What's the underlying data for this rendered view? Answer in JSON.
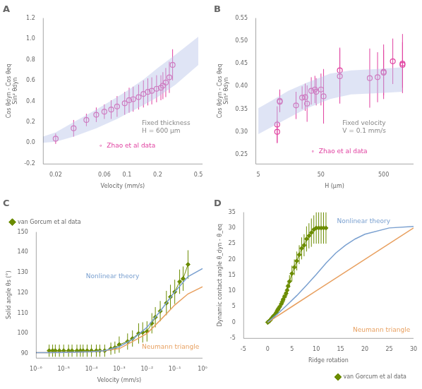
{
  "chart_data": [
    {
      "type": "scatter",
      "title": "A",
      "xlabel": "Velocity (mm/s)",
      "ylabel": [
        "Cos θdyn - Cos θeq",
        "Sin² θdyn"
      ],
      "log": "x",
      "grid": false,
      "xlim": [
        0.015,
        0.55
      ],
      "xticks": [
        0.02,
        0.06,
        0.1,
        0.2,
        0.5
      ],
      "ylim": [
        -0.2,
        1.2
      ],
      "yticks": [
        -0.2,
        {
          "value": 0,
          "label": "0.0"
        },
        0.2,
        0.4,
        0.6,
        0.8,
        {
          "value": 1,
          "label": "1.0"
        },
        1.2
      ],
      "series": [
        {
          "type": "band",
          "color": "#b8c4e8",
          "x": [
            0.015,
            0.02,
            0.03,
            0.05,
            0.08,
            0.1,
            0.15,
            0.2,
            0.3,
            0.5
          ],
          "low": [
            0.0,
            0.01,
            0.06,
            0.14,
            0.23,
            0.28,
            0.37,
            0.44,
            0.56,
            0.75
          ],
          "high": [
            0.06,
            0.1,
            0.2,
            0.32,
            0.44,
            0.5,
            0.62,
            0.72,
            0.85,
            1.02
          ]
        },
        {
          "type": "scatter",
          "color": "#e040a0",
          "marker": "open_circle",
          "x": [
            0.02,
            0.03,
            0.04,
            0.05,
            0.06,
            0.07,
            0.08,
            0.095,
            0.105,
            0.115,
            0.13,
            0.145,
            0.16,
            0.175,
            0.195,
            0.215,
            0.225,
            0.24,
            0.26,
            0.28
          ],
          "values": [
            0.04,
            0.14,
            0.22,
            0.27,
            0.3,
            0.32,
            0.35,
            0.38,
            0.41,
            0.42,
            0.44,
            0.47,
            0.49,
            0.5,
            0.52,
            0.53,
            0.55,
            0.58,
            0.63,
            0.75
          ],
          "yerr": [
            0.05,
            0.08,
            0.06,
            0.07,
            0.07,
            0.09,
            0.1,
            0.11,
            0.12,
            0.12,
            0.12,
            0.13,
            0.13,
            0.13,
            0.13,
            0.12,
            0.13,
            0.14,
            0.15,
            0.15
          ]
        }
      ],
      "annotations": [
        {
          "text": [
            "Fixed thickness",
            "H = 600 μm"
          ],
          "color": "#888888"
        },
        {
          "text": "∘  Zhao et al data",
          "color": "#e040a0"
        }
      ]
    },
    {
      "type": "scatter",
      "title": "B",
      "xlabel": "H (μm)",
      "ylabel": [
        "Cos θdyn - Cos θeq",
        "Sin² θdyn"
      ],
      "log": "x",
      "grid": false,
      "xlim": [
        4.5,
        1500
      ],
      "xticks": [
        5,
        50,
        500
      ],
      "ylim": [
        0.23,
        0.55
      ],
      "yticks": [
        0.25,
        {
          "value": 0.3,
          "label": "0.30"
        },
        0.35,
        {
          "value": 0.4,
          "label": "0.40"
        },
        0.45,
        {
          "value": 0.5,
          "label": "0.50"
        },
        0.55
      ],
      "series": [
        {
          "type": "band",
          "color": "#b8c4e8",
          "x": [
            5,
            8,
            15,
            30,
            70,
            150,
            400,
            1000
          ],
          "low": [
            0.295,
            0.31,
            0.33,
            0.352,
            0.372,
            0.382,
            0.385,
            0.388
          ],
          "high": [
            0.352,
            0.368,
            0.39,
            0.408,
            0.428,
            0.435,
            0.438,
            0.442
          ]
        },
        {
          "type": "scatter",
          "color": "#e040a0",
          "marker": "open_circle",
          "x": [
            10,
            10,
            11,
            11,
            20,
            25,
            28,
            30,
            35,
            40,
            42,
            50,
            55,
            100,
            100,
            300,
            400,
            500,
            500,
            700,
            1000,
            1000
          ],
          "values": [
            0.3,
            0.316,
            0.366,
            0.368,
            0.358,
            0.375,
            0.376,
            0.362,
            0.39,
            0.393,
            0.388,
            0.393,
            0.378,
            0.435,
            0.422,
            0.418,
            0.42,
            0.432,
            0.43,
            0.455,
            0.447,
            0.45
          ],
          "yerr": [
            0.025,
            0.04,
            0.02,
            0.025,
            0.03,
            0.025,
            0.03,
            0.04,
            0.03,
            0.03,
            0.03,
            0.035,
            0.06,
            0.05,
            0.06,
            0.065,
            0.055,
            0.06,
            0.05,
            0.05,
            0.05,
            0.065
          ]
        }
      ],
      "annotations": [
        {
          "text": [
            "Fixed velocity",
            "V = 0.1 mm/s"
          ],
          "color": "#888888"
        },
        {
          "text": "∘  Zhao et al data",
          "color": "#e040a0"
        }
      ]
    },
    {
      "type": "line",
      "title": "C",
      "xlabel": "Velocity (mm/s)",
      "ylabel": "Solid angle θs (°)",
      "log": "x",
      "grid": false,
      "legend": "upper left",
      "xlim": [
        1e-06,
        1.0
      ],
      "xticks": [
        {
          "value": 1e-06,
          "label": "10⁻⁶"
        },
        {
          "value": 1e-05,
          "label": "10⁻⁵"
        },
        {
          "value": 0.0001,
          "label": "10⁻⁴"
        },
        {
          "value": 0.001,
          "label": "10⁻³"
        },
        {
          "value": 0.01,
          "label": "10⁻²"
        },
        {
          "value": 0.1,
          "label": "10⁻¹"
        },
        {
          "value": 1,
          "label": "10⁰"
        }
      ],
      "ylim": [
        88,
        150
      ],
      "yticks": [
        90,
        100,
        110,
        120,
        130,
        140,
        150
      ],
      "series": [
        {
          "type": "line",
          "color": "#7aa0d0",
          "line_style": "solid",
          "x": [
            1e-06,
            3e-06,
            1e-05,
            3e-05,
            0.0001,
            0.0003,
            0.001,
            0.003,
            0.01,
            0.03,
            0.1,
            0.3,
            1.0
          ],
          "values": [
            90.5,
            90.5,
            90.6,
            90.8,
            91.0,
            91.5,
            93.5,
            97.0,
            103.0,
            111.0,
            120.5,
            128.0,
            132.0
          ]
        },
        {
          "type": "line",
          "color": "#e8a060",
          "line_style": "solid",
          "x": [
            1e-06,
            3e-06,
            1e-05,
            3e-05,
            0.0001,
            0.0003,
            0.001,
            0.003,
            0.01,
            0.03,
            0.1,
            0.3,
            1.0
          ],
          "values": [
            90.5,
            90.5,
            90.6,
            90.8,
            91.0,
            91.5,
            92.5,
            96.0,
            100.0,
            106.5,
            114.0,
            119.5,
            123.0
          ]
        },
        {
          "type": "line",
          "name": "van Gorcum et al data",
          "color": "#6b8c00",
          "marker": "diamond",
          "line_style": "solid",
          "x": [
            3e-06,
            4e-06,
            5e-06,
            7e-06,
            1e-05,
            1.5e-05,
            2e-05,
            3e-05,
            4e-05,
            5e-05,
            7e-05,
            0.0001,
            0.00015,
            0.0002,
            0.0003,
            0.0005,
            0.0007,
            0.001,
            0.002,
            0.003,
            0.005,
            0.007,
            0.01,
            0.015,
            0.02,
            0.03,
            0.05,
            0.07,
            0.1,
            0.15,
            0.2,
            0.3
          ],
          "values": [
            91.5,
            91.5,
            91.5,
            91.5,
            91.5,
            91.5,
            91.5,
            91.5,
            91.5,
            91.5,
            91.5,
            91.5,
            91.5,
            91.5,
            91.5,
            92.5,
            93.0,
            94.5,
            96.0,
            97.5,
            100.0,
            100.5,
            101.0,
            105.0,
            108.0,
            111.0,
            115.0,
            118.0,
            120.5,
            125.5,
            127.0,
            134.0
          ],
          "yerr_low": [
            3,
            3,
            3,
            3,
            3,
            3,
            3,
            3,
            3,
            3,
            3,
            3,
            3,
            3,
            3,
            3,
            3,
            4,
            4,
            4,
            5,
            5,
            5,
            5,
            5,
            5,
            6,
            6,
            6,
            6,
            6,
            7
          ],
          "yerr_high": [
            3,
            3,
            3,
            3,
            3,
            3,
            3,
            3,
            3,
            3,
            3,
            3,
            3,
            3,
            3,
            3,
            3,
            4,
            4,
            4,
            5,
            5,
            5,
            5,
            5,
            5,
            6,
            6,
            6,
            6,
            6,
            7
          ]
        }
      ],
      "annotations": [
        {
          "text": "Nonlinear theory",
          "color": "#7aa0d0"
        },
        {
          "text": "Neumann triangle",
          "color": "#e8a060"
        }
      ]
    },
    {
      "type": "line",
      "title": "D",
      "xlabel": "Ridge rotation",
      "ylabel": "Dynamic contact angle θ_dyn - θ_eq",
      "grid": false,
      "legend": "lower right",
      "xlim": [
        -5,
        30
      ],
      "xticks": [
        -5,
        0,
        5,
        10,
        15,
        20,
        25,
        30
      ],
      "ylim": [
        -5,
        35
      ],
      "yticks": [
        -5,
        0,
        5,
        10,
        15,
        20,
        25,
        30,
        35
      ],
      "series": [
        {
          "type": "line",
          "color": "#7aa0d0",
          "line_style": "solid",
          "x": [
            0,
            2,
            4,
            6,
            8,
            10,
            12,
            14,
            16,
            18,
            20,
            25,
            30
          ],
          "values": [
            0,
            2.6,
            5.5,
            8.5,
            11.8,
            15.2,
            18.8,
            22.0,
            24.5,
            26.5,
            28.0,
            30.0,
            30.5
          ]
        },
        {
          "type": "line",
          "color": "#e8a060",
          "line_style": "solid",
          "x": [
            0,
            5,
            10,
            15,
            20,
            25,
            30
          ],
          "values": [
            0,
            5.0,
            10.0,
            15.0,
            20.0,
            25.0,
            30.0
          ]
        },
        {
          "type": "line",
          "name": "van Gorcum et al data",
          "color": "#6b8c00",
          "marker": "diamond",
          "line_style": "solid",
          "x": [
            0.0,
            0.2,
            0.4,
            0.6,
            0.8,
            1.0,
            1.2,
            1.5,
            1.8,
            2.0,
            2.2,
            2.5,
            2.8,
            3.0,
            3.2,
            3.5,
            3.8,
            4.0,
            4.2,
            4.5,
            5.0,
            5.5,
            6.0,
            6.5,
            7.0,
            7.5,
            8.0,
            8.5,
            9.0,
            9.5,
            10.0,
            10.5,
            11.0,
            11.5,
            12.0
          ],
          "values": [
            0.0,
            0.2,
            0.5,
            0.8,
            1.2,
            1.6,
            2.0,
            2.5,
            3.2,
            3.8,
            4.3,
            5.0,
            5.8,
            6.5,
            7.3,
            8.2,
            9.2,
            10.2,
            11.5,
            13.0,
            15.5,
            17.5,
            19.5,
            21.5,
            23.5,
            24.5,
            26.5,
            27.5,
            28.5,
            29.5,
            30.0,
            30.0,
            30.0,
            30.0,
            30.0
          ],
          "xerr": [
            0.3,
            0.3,
            0.3,
            0.3,
            0.3,
            0.3,
            0.3,
            0.3,
            0.3,
            0.3,
            0.3,
            0.3,
            0.3,
            0.3,
            0.3,
            0.3,
            0.3,
            0.3,
            0.3,
            0.3,
            0.3,
            0.3,
            0.3,
            0.3,
            0.3,
            0.3,
            0.3,
            0.3,
            0.3,
            0.3,
            0.3,
            0.3,
            0.3,
            0.3,
            0.3
          ],
          "yerr": [
            0.8,
            0.8,
            0.8,
            0.8,
            0.8,
            0.8,
            0.8,
            0.8,
            1.0,
            1.0,
            1.0,
            1.2,
            1.2,
            1.2,
            1.5,
            1.5,
            1.5,
            1.8,
            1.8,
            2.0,
            2.5,
            2.5,
            3.0,
            3.0,
            3.5,
            3.5,
            4.0,
            4.0,
            4.5,
            4.5,
            5.0,
            5.0,
            5.0,
            5.0,
            5.0
          ]
        }
      ],
      "annotations": [
        {
          "text": "Nonlinear theory",
          "color": "#7aa0d0"
        },
        {
          "text": "Neumann triangle",
          "color": "#e8a060"
        }
      ]
    }
  ]
}
